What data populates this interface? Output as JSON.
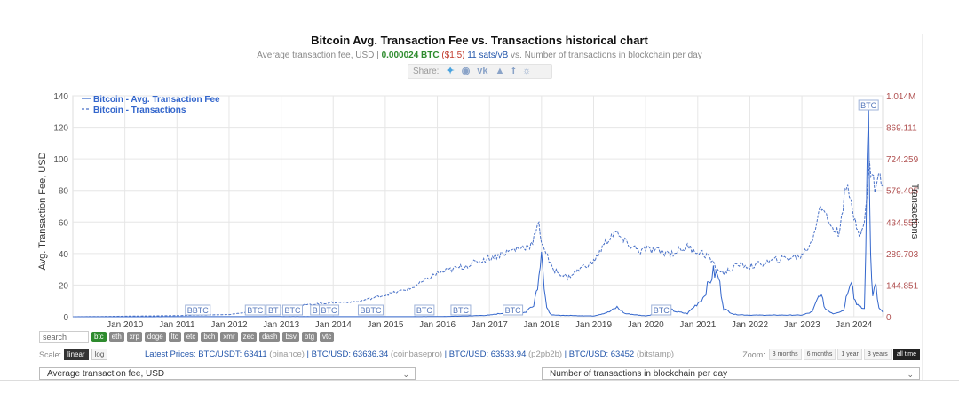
{
  "header": {
    "title": "Bitcoin Avg. Transaction Fee vs. Transactions historical chart",
    "sub_prefix": "Average transaction fee, USD | ",
    "sub_btc": "0.000024 BTC",
    "sub_usd": "($1.5)",
    "sub_sats": "11 sats/vB",
    "sub_suffix": "vs. Number of transactions in blockchain per day"
  },
  "share": {
    "label": "Share:",
    "icons": [
      "twitter-icon",
      "reddit-icon",
      "vk-icon",
      "like-icon",
      "facebook-icon",
      "weibo-icon"
    ]
  },
  "chart_data": {
    "type": "line",
    "title": "Bitcoin Avg. Transaction Fee vs. Transactions historical chart",
    "ylabel": "Avg. Transaction Fee, USD",
    "y2label": "Transactions",
    "ylim": [
      0,
      140
    ],
    "y2lim": [
      0,
      1014000
    ],
    "y_ticks": [
      "0",
      "20",
      "40",
      "60",
      "80",
      "100",
      "120",
      "140"
    ],
    "y2_ticks": [
      "0",
      "144.851",
      "289.703",
      "434.554",
      "579.405",
      "724.259",
      "869.111",
      "1.014M"
    ],
    "x_ticks": [
      "Jan 2010",
      "Jan 2011",
      "Jan 2012",
      "Jan 2013",
      "Jan 2014",
      "Jan 2015",
      "Jan 2016",
      "Jan 2017",
      "Jan 2018",
      "Jan 2019",
      "Jan 2020",
      "Jan 2021",
      "Jan 2022",
      "Jan 2023",
      "Jan 2024"
    ],
    "x_range": [
      2009.0,
      2024.55
    ],
    "grid": true,
    "legend_position": "top-left",
    "colors": {
      "fee": "#3366cc",
      "tx": "#4a72c8",
      "axis_left": "#555555",
      "axis_right": "#b05050"
    },
    "series": [
      {
        "name": "Bitcoin - Avg. Transaction Fee",
        "axis": "left",
        "style": "solid",
        "points": [
          [
            2009.0,
            0
          ],
          [
            2012.0,
            0.05
          ],
          [
            2013.0,
            0.1
          ],
          [
            2014.0,
            0.05
          ],
          [
            2015.0,
            0.05
          ],
          [
            2016.0,
            0.1
          ],
          [
            2016.5,
            0.4
          ],
          [
            2017.0,
            1
          ],
          [
            2017.3,
            2.5
          ],
          [
            2017.45,
            5
          ],
          [
            2017.6,
            2
          ],
          [
            2017.7,
            3
          ],
          [
            2017.85,
            8
          ],
          [
            2017.95,
            25
          ],
          [
            2018.0,
            48
          ],
          [
            2018.05,
            18
          ],
          [
            2018.1,
            5
          ],
          [
            2018.2,
            1
          ],
          [
            2019.0,
            0.5
          ],
          [
            2019.3,
            3
          ],
          [
            2019.45,
            6
          ],
          [
            2019.6,
            2
          ],
          [
            2020.0,
            0.5
          ],
          [
            2020.35,
            3
          ],
          [
            2020.45,
            5
          ],
          [
            2020.6,
            3
          ],
          [
            2020.8,
            2
          ],
          [
            2020.95,
            7
          ],
          [
            2021.1,
            12
          ],
          [
            2021.3,
            28
          ],
          [
            2021.4,
            25
          ],
          [
            2021.5,
            5
          ],
          [
            2021.7,
            1.5
          ],
          [
            2022.0,
            1
          ],
          [
            2023.0,
            1
          ],
          [
            2023.2,
            3
          ],
          [
            2023.35,
            15
          ],
          [
            2023.45,
            5
          ],
          [
            2023.6,
            2
          ],
          [
            2023.8,
            4
          ],
          [
            2023.9,
            20
          ],
          [
            2023.95,
            25
          ],
          [
            2024.0,
            12
          ],
          [
            2024.1,
            6
          ],
          [
            2024.2,
            5
          ],
          [
            2024.28,
            130
          ],
          [
            2024.32,
            40
          ],
          [
            2024.36,
            15
          ],
          [
            2024.42,
            20
          ],
          [
            2024.48,
            5
          ],
          [
            2024.55,
            3
          ]
        ]
      },
      {
        "name": "Bitcoin - Transactions",
        "axis": "right",
        "style": "dashed",
        "points": [
          [
            2009.0,
            0
          ],
          [
            2011.0,
            5000
          ],
          [
            2012.0,
            10000
          ],
          [
            2013.0,
            40000
          ],
          [
            2013.5,
            55000
          ],
          [
            2014.0,
            65000
          ],
          [
            2014.5,
            70000
          ],
          [
            2015.0,
            100000
          ],
          [
            2015.5,
            130000
          ],
          [
            2016.0,
            200000
          ],
          [
            2016.5,
            230000
          ],
          [
            2017.0,
            270000
          ],
          [
            2017.5,
            310000
          ],
          [
            2017.8,
            330000
          ],
          [
            2017.95,
            420000
          ],
          [
            2018.0,
            350000
          ],
          [
            2018.2,
            220000
          ],
          [
            2018.5,
            180000
          ],
          [
            2018.8,
            230000
          ],
          [
            2019.0,
            250000
          ],
          [
            2019.2,
            330000
          ],
          [
            2019.4,
            390000
          ],
          [
            2019.6,
            340000
          ],
          [
            2019.9,
            300000
          ],
          [
            2020.0,
            310000
          ],
          [
            2020.5,
            290000
          ],
          [
            2020.8,
            320000
          ],
          [
            2021.0,
            300000
          ],
          [
            2021.2,
            280000
          ],
          [
            2021.35,
            220000
          ],
          [
            2021.5,
            200000
          ],
          [
            2021.8,
            240000
          ],
          [
            2022.0,
            230000
          ],
          [
            2022.5,
            260000
          ],
          [
            2023.0,
            280000
          ],
          [
            2023.2,
            350000
          ],
          [
            2023.35,
            520000
          ],
          [
            2023.5,
            440000
          ],
          [
            2023.7,
            380000
          ],
          [
            2023.85,
            600000
          ],
          [
            2024.0,
            460000
          ],
          [
            2024.1,
            390000
          ],
          [
            2024.2,
            420000
          ],
          [
            2024.3,
            700000
          ],
          [
            2024.4,
            600000
          ],
          [
            2024.5,
            650000
          ],
          [
            2024.55,
            600000
          ]
        ]
      }
    ],
    "btc_labels": [
      {
        "x": 2011.4,
        "text": "BBTC"
      },
      {
        "x": 2012.5,
        "text": "BTC"
      },
      {
        "x": 2012.85,
        "text": "BT"
      },
      {
        "x": 2013.22,
        "text": "BTC"
      },
      {
        "x": 2013.65,
        "text": "B"
      },
      {
        "x": 2013.92,
        "text": "BTC"
      },
      {
        "x": 2014.72,
        "text": "BBTC"
      },
      {
        "x": 2015.75,
        "text": "BTC"
      },
      {
        "x": 2016.45,
        "text": "BTC"
      },
      {
        "x": 2017.45,
        "text": "BTC"
      },
      {
        "x": 2020.3,
        "text": "BTC"
      },
      {
        "x": 2024.28,
        "text": "BTC",
        "top": true
      }
    ]
  },
  "controls": {
    "search_placeholder": "search",
    "coins": [
      "btc",
      "eth",
      "xrp",
      "doge",
      "ltc",
      "etc",
      "bch",
      "xmr",
      "zec",
      "dash",
      "bsv",
      "btg",
      "vtc"
    ],
    "active_coin": "btc",
    "scale_label": "Scale:",
    "scale_linear": "linear",
    "scale_log": "log",
    "zoom_label": "Zoom:",
    "zoom_options": [
      "3 months",
      "6 months",
      "1 year",
      "3 years",
      "all time"
    ],
    "zoom_active": "all time"
  },
  "prices": {
    "prefix": "Latest Prices: ",
    "items": [
      {
        "pair": "BTC/USDT: 63411",
        "source": "(binance)"
      },
      {
        "pair": "BTC/USD: 63636.34",
        "source": "(coinbasepro)"
      },
      {
        "pair": "BTC/USD: 63533.94",
        "source": "(p2pb2b)"
      },
      {
        "pair": "BTC/USD: 63452",
        "source": "(bitstamp)"
      }
    ]
  },
  "selectors": {
    "left": "Average transaction fee, USD",
    "right": "Number of transactions in blockchain per day"
  }
}
